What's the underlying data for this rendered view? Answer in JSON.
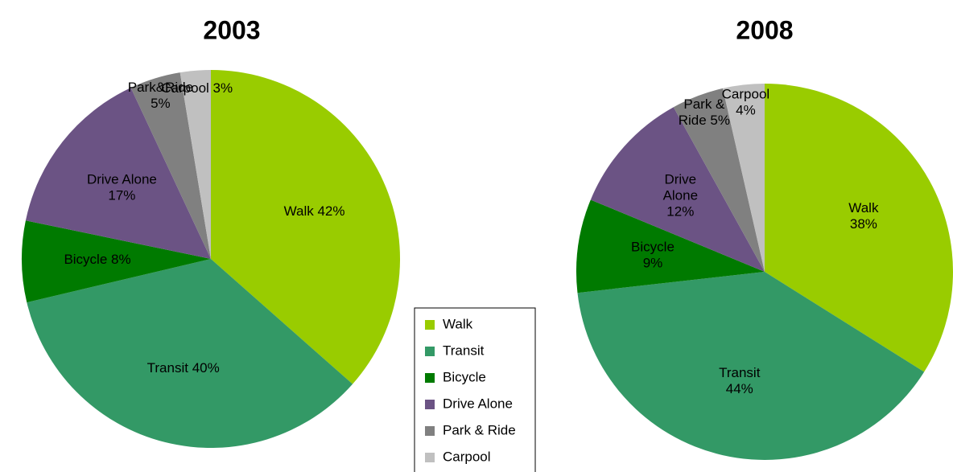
{
  "legend": {
    "categories": [
      "Walk",
      "Transit",
      "Bicycle",
      "Drive Alone",
      "Park & Ride",
      "Carpool"
    ],
    "colors": [
      "#99cc00",
      "#339966",
      "#007a00",
      "#6b5384",
      "#808080",
      "#c0c0c0"
    ]
  },
  "chart_data": [
    {
      "type": "pie",
      "title": "2003",
      "values": [
        42,
        40,
        8,
        17,
        5,
        3
      ],
      "value_labels": [
        "Walk 42%",
        "Transit 40%",
        "Bicycle 8%",
        "Drive Alone\n17%",
        "Park&Ride\n5%",
        "Carpool 3%"
      ]
    },
    {
      "type": "pie",
      "title": "2008",
      "values": [
        38,
        44,
        9,
        12,
        5,
        4
      ],
      "value_labels": [
        "Walk\n38%",
        "Transit\n44%",
        "Bicycle\n9%",
        "Drive\nAlone\n12%",
        "Park &\nRide 5%",
        "Carpool\n4%"
      ]
    }
  ]
}
